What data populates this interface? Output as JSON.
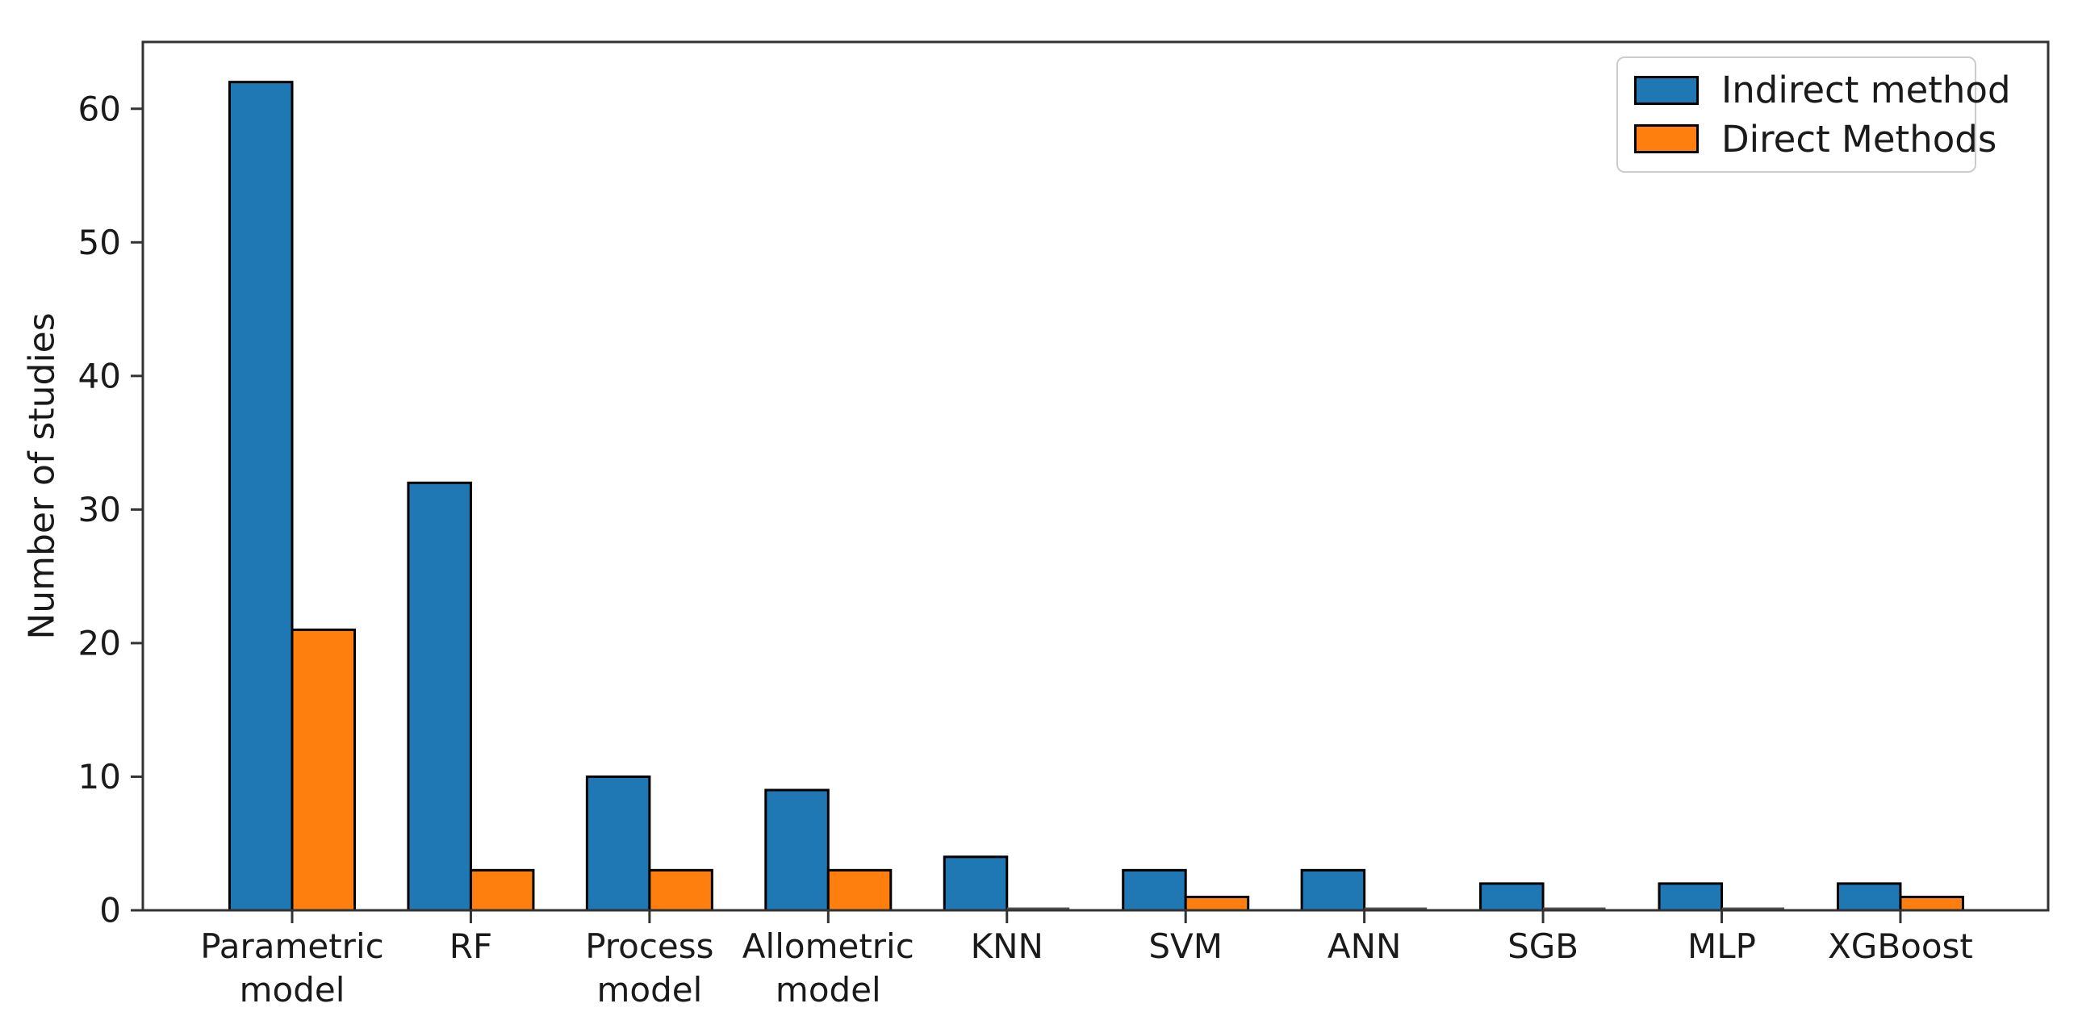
{
  "chart_data": {
    "type": "bar",
    "title": "",
    "xlabel": "",
    "ylabel": "Number of studies",
    "categories": [
      "Parametric model",
      "RF",
      "Process model",
      "Allometric model",
      "KNN",
      "SVM",
      "ANN",
      "SGB",
      "MLP",
      "XGBoost"
    ],
    "series": [
      {
        "name": "Indirect method",
        "color": "#1f77b4",
        "values": [
          62,
          32,
          10,
          9,
          4,
          3,
          3,
          2,
          2,
          2
        ]
      },
      {
        "name": "Direct Methods",
        "color": "#ff7f0e",
        "values": [
          21,
          3,
          3,
          3,
          0,
          1,
          0,
          0,
          0,
          1
        ]
      }
    ],
    "ylim": [
      0,
      65
    ],
    "yticks": [
      0,
      10,
      20,
      30,
      40,
      50,
      60
    ],
    "grid": false,
    "legend_position": "upper right",
    "bar_edge_color": "#000000",
    "bar_width_fraction": 0.35
  }
}
